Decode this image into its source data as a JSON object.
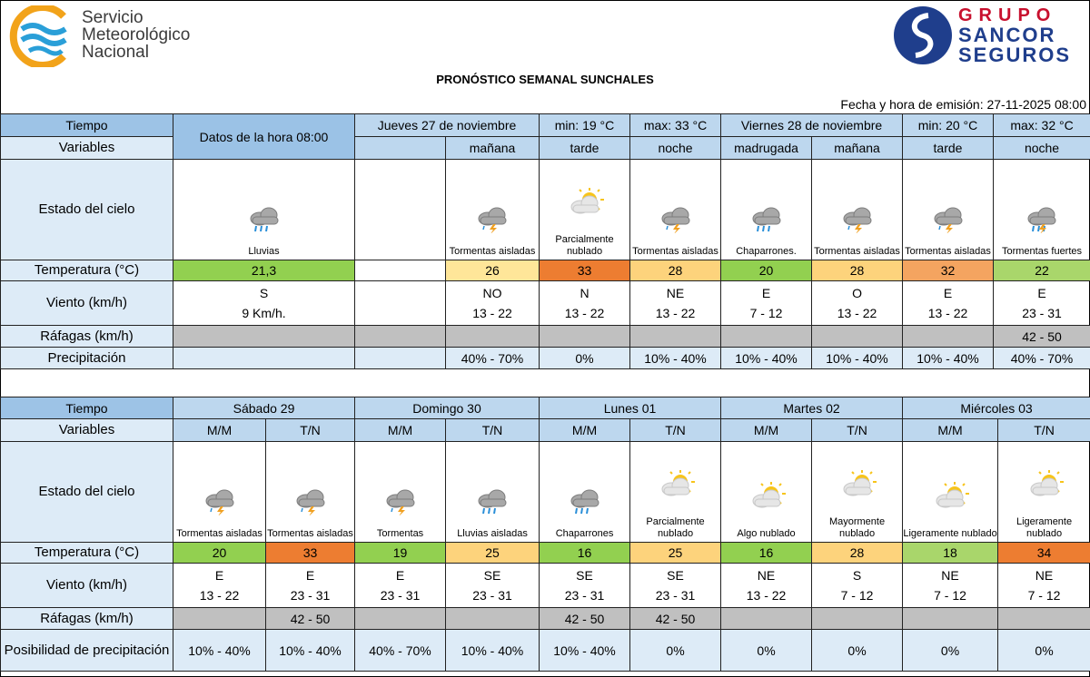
{
  "header": {
    "smn_logo": [
      "Servicio",
      "Meteorológico",
      "Nacional"
    ],
    "sancor_logo": [
      "GRUPO",
      "SANCOR",
      "SEGUROS"
    ],
    "title": "PRONÓSTICO SEMANAL SUNCHALES",
    "emission": "Fecha y hora de emisión: 27-11-2025 08:00"
  },
  "table1": {
    "row_labels": [
      "Tiempo",
      "Variables",
      "Estado del cielo",
      "Temperatura (°C)",
      "Viento (km/h)",
      "Ráfagas (km/h)",
      "Precipitación"
    ],
    "current": {
      "header": "Datos de la hora 08:00",
      "sky": "Lluvias",
      "temp": "21,3",
      "temp_color": "#92d050",
      "wind_dir": "S",
      "wind_speed": "9 Km/h."
    },
    "days": [
      {
        "name": "Jueves 27 de noviembre",
        "min": "min: 19 °C",
        "max": "max: 33 °C",
        "columns": [
          {
            "period": "mañana",
            "sky": "Tormentas aisladas",
            "temp": "26",
            "temp_color": "#ffe699",
            "wind_dir": "NO",
            "wind_speed": "13 - 22",
            "precip": "40% - 70%"
          },
          {
            "period": "tarde",
            "sky": "Parcialmente nublado",
            "temp": "33",
            "temp_color": "#ed7d31",
            "wind_dir": "N",
            "wind_speed": "13 - 22",
            "precip": "0%"
          },
          {
            "period": "noche",
            "sky": "Tormentas aisladas",
            "temp": "28",
            "temp_color": "#fdd37c",
            "wind_dir": "NE",
            "wind_speed": "13 - 22",
            "precip": "10% - 40%"
          }
        ]
      },
      {
        "name": "Viernes 28 de noviembre",
        "min": "min: 20 °C",
        "max": "max: 32 °C",
        "columns": [
          {
            "period": "madrugada",
            "sky": "Chaparrones.",
            "temp": "20",
            "temp_color": "#92d050",
            "wind_dir": "E",
            "wind_speed": "7 - 12",
            "precip": "10% - 40%"
          },
          {
            "period": "mañana",
            "sky": "Tormentas aisladas",
            "temp": "28",
            "temp_color": "#fdd37c",
            "wind_dir": "O",
            "wind_speed": "13 - 22",
            "precip": "10% - 40%"
          },
          {
            "period": "tarde",
            "sky": "Tormentas aisladas",
            "temp": "32",
            "temp_color": "#f4a460",
            "wind_dir": "E",
            "wind_speed": "13 - 22",
            "precip": "10% - 40%"
          },
          {
            "period": "noche",
            "sky": "Tormentas fuertes",
            "temp": "22",
            "temp_color": "#a9d66b",
            "wind_dir": "E",
            "wind_speed": "23 - 31",
            "gust": "42 - 50",
            "precip": "40% - 70%"
          }
        ]
      }
    ]
  },
  "table2": {
    "row_labels": [
      "Tiempo",
      "Variables",
      "Estado del cielo",
      "Temperatura (°C)",
      "Viento (km/h)",
      "Ráfagas (km/h)",
      "Posibilidad de precipitación"
    ],
    "days": [
      {
        "name": "Sábado 29",
        "columns": [
          {
            "period": "M/M",
            "sky": "Tormentas aisladas",
            "temp": "20",
            "temp_color": "#92d050",
            "wind_dir": "E",
            "wind_speed": "13 - 22",
            "precip": "10% - 40%"
          },
          {
            "period": "T/N",
            "sky": "Tormentas aisladas",
            "temp": "33",
            "temp_color": "#ed7d31",
            "wind_dir": "E",
            "wind_speed": "23 - 31",
            "gust": "42 - 50",
            "precip": "10% - 40%"
          }
        ]
      },
      {
        "name": "Domingo 30",
        "columns": [
          {
            "period": "M/M",
            "sky": "Tormentas",
            "temp": "19",
            "temp_color": "#92d050",
            "wind_dir": "E",
            "wind_speed": "23 - 31",
            "precip": "40% - 70%"
          },
          {
            "period": "T/N",
            "sky": "Lluvias aisladas",
            "temp": "25",
            "temp_color": "#fdd37c",
            "wind_dir": "SE",
            "wind_speed": "23 - 31",
            "precip": "10% - 40%"
          }
        ]
      },
      {
        "name": "Lunes 01",
        "columns": [
          {
            "period": "M/M",
            "sky": "Chaparrones",
            "temp": "16",
            "temp_color": "#92d050",
            "wind_dir": "SE",
            "wind_speed": "23 - 31",
            "gust": "42 - 50",
            "precip": "10% - 40%"
          },
          {
            "period": "T/N",
            "sky": "Parcialmente nublado",
            "temp": "25",
            "temp_color": "#fdd37c",
            "wind_dir": "SE",
            "wind_speed": "23 - 31",
            "gust": "42 - 50",
            "precip": "0%"
          }
        ]
      },
      {
        "name": "Martes 02",
        "columns": [
          {
            "period": "M/M",
            "sky": "Algo nublado",
            "temp": "16",
            "temp_color": "#92d050",
            "wind_dir": "NE",
            "wind_speed": "13 - 22",
            "precip": "0%"
          },
          {
            "period": "T/N",
            "sky": "Mayormente nublado",
            "temp": "28",
            "temp_color": "#fdd37c",
            "wind_dir": "S",
            "wind_speed": "7 - 12",
            "precip": "0%"
          }
        ]
      },
      {
        "name": "Miércoles 03",
        "columns": [
          {
            "period": "M/M",
            "sky": "Ligeramente nublado",
            "temp": "18",
            "temp_color": "#a9d66b",
            "wind_dir": "NE",
            "wind_speed": "7 - 12",
            "precip": "0%"
          },
          {
            "period": "T/N",
            "sky": "Ligeramente nublado",
            "temp": "34",
            "temp_color": "#ed7d31",
            "wind_dir": "NE",
            "wind_speed": "7 - 12",
            "precip": "0%"
          }
        ]
      }
    ]
  }
}
